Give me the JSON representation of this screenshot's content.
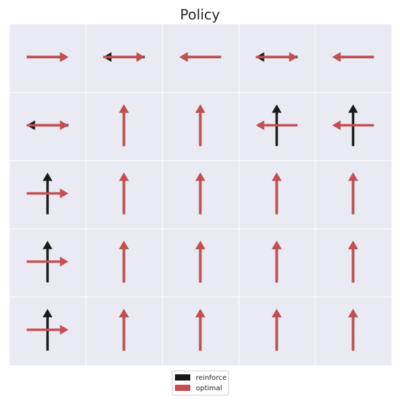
{
  "chart_data": {
    "type": "quiver",
    "title": "Policy",
    "rows": 5,
    "cols": 5,
    "grid": true,
    "background": "#eaeaf2",
    "series": [
      {
        "name": "reinforce",
        "color": "#1a1a1a",
        "actions": [
          [
            "right",
            "left",
            "left",
            "left",
            "left"
          ],
          [
            "left",
            "up",
            "up",
            "up",
            "up"
          ],
          [
            "up",
            "up",
            "up",
            "up",
            "up"
          ],
          [
            "up",
            "up",
            "up",
            "up",
            "up"
          ],
          [
            "up",
            "up",
            "up",
            "up",
            "up"
          ]
        ]
      },
      {
        "name": "optimal",
        "color": "#c44e52",
        "actions": [
          [
            "right",
            "right",
            "left",
            "right",
            "left"
          ],
          [
            "right",
            "up",
            "up",
            "left",
            "left"
          ],
          [
            "right",
            "up",
            "up",
            "up",
            "up"
          ],
          [
            "right",
            "up",
            "up",
            "up",
            "up"
          ],
          [
            "right",
            "up",
            "up",
            "up",
            "up"
          ]
        ]
      }
    ],
    "legend": {
      "placement": "bottom-center",
      "entries": [
        "reinforce",
        "optimal"
      ]
    }
  }
}
